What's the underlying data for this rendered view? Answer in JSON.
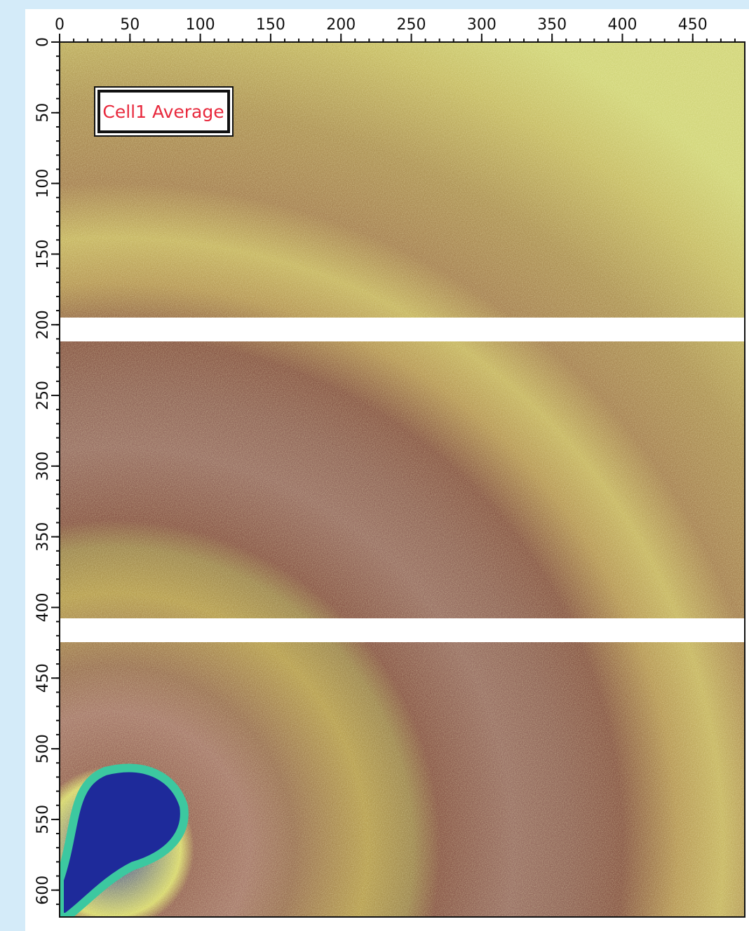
{
  "chart_data": {
    "type": "image",
    "annotation": "Cell1 Average",
    "xlim": [
      0,
      487
    ],
    "ylim": [
      0,
      619
    ],
    "xticks": [
      0,
      50,
      100,
      150,
      200,
      250,
      300,
      350,
      400,
      450
    ],
    "yticks": [
      0,
      50,
      100,
      150,
      200,
      250,
      300,
      350,
      400,
      450,
      500,
      550,
      600
    ],
    "xminorticks": [
      0,
      10,
      20,
      30,
      40,
      50,
      60,
      70,
      80,
      90,
      100,
      110,
      120,
      130,
      140,
      150,
      160,
      170,
      180,
      190,
      200,
      210,
      220,
      230,
      240,
      250,
      260,
      270,
      280,
      290,
      300,
      310,
      320,
      330,
      340,
      350,
      360,
      370,
      380,
      390,
      400,
      410,
      420,
      430,
      440,
      450,
      460,
      470,
      480
    ],
    "yminorticks": [
      0,
      10,
      20,
      30,
      40,
      50,
      60,
      70,
      80,
      90,
      100,
      110,
      120,
      130,
      140,
      150,
      160,
      170,
      180,
      190,
      200,
      210,
      220,
      230,
      240,
      250,
      260,
      270,
      280,
      290,
      300,
      310,
      320,
      330,
      340,
      350,
      360,
      370,
      380,
      390,
      400,
      410,
      420,
      430,
      440,
      450,
      460,
      470,
      480,
      490,
      500,
      510,
      520,
      530,
      540,
      550,
      560,
      570,
      580,
      590,
      600,
      610
    ]
  }
}
